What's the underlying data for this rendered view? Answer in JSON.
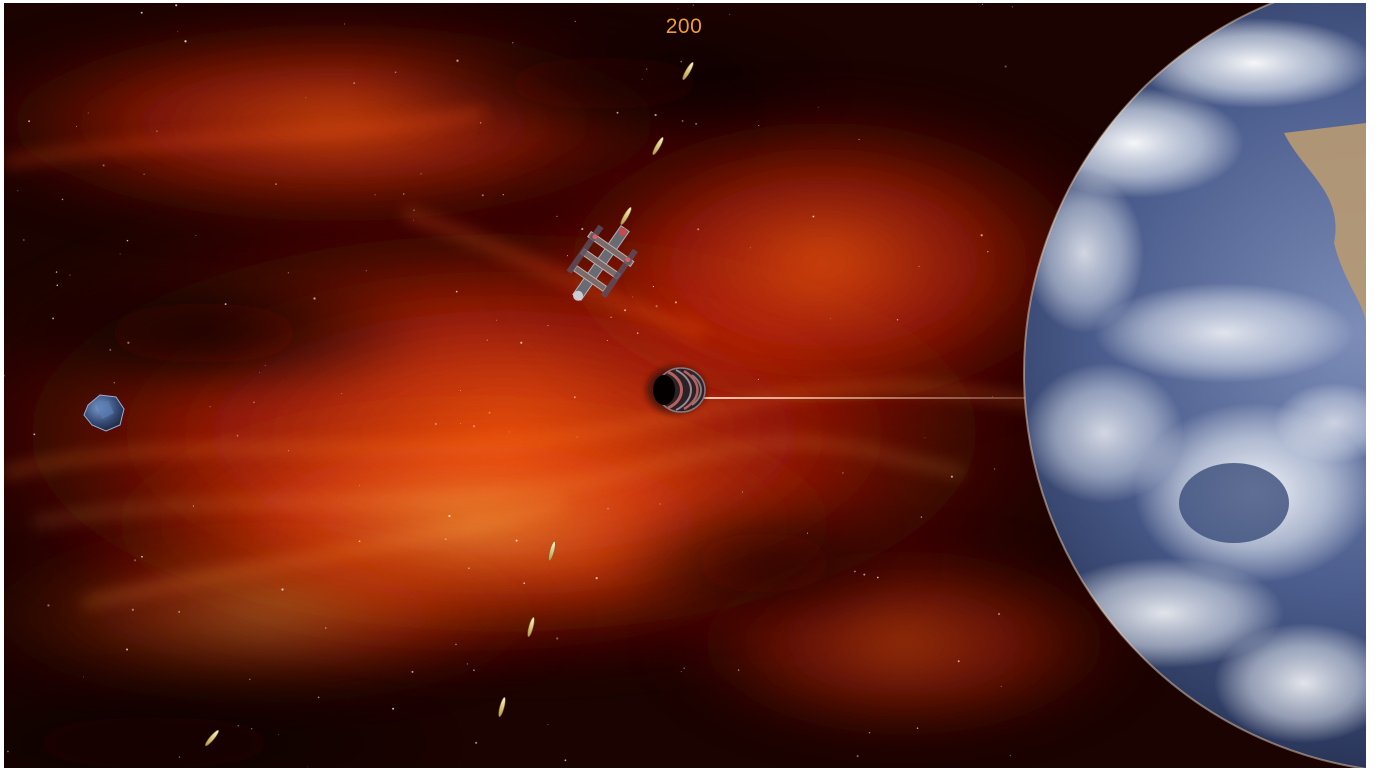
{
  "hud": {
    "score": "200"
  },
  "colors": {
    "score_text": "#f39c2a",
    "nebula_bright": "#ff4a10",
    "nebula_core": "#ffb34a",
    "space_dark": "#160200",
    "laser": "#ffd9c0"
  },
  "scene": {
    "planet": "earth-planet",
    "player_ship": "player-spaceship",
    "enemy": "enemy-pod-ship",
    "asteroid": "blue-asteroid",
    "projectile": "missile",
    "background": "red-nebula-starfield"
  }
}
